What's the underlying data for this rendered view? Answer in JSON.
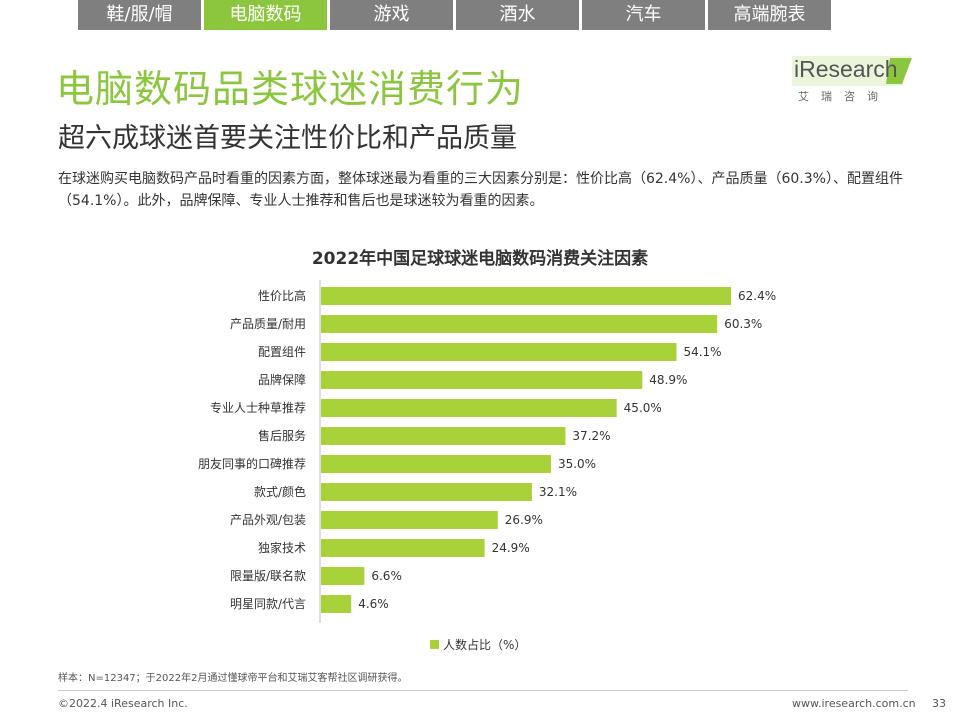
{
  "tabs": [
    {
      "label": "鞋/服/帽",
      "active": false
    },
    {
      "label": "电脑数码",
      "active": true
    },
    {
      "label": "游戏",
      "active": false
    },
    {
      "label": "酒水",
      "active": false
    },
    {
      "label": "汽车",
      "active": false
    },
    {
      "label": "高端腕表",
      "active": false
    }
  ],
  "title": "电脑数码品类球迷消费行为",
  "subtitle": "超六成球迷首要关注性价比和产品质量",
  "summary": "在球迷购买电脑数码产品时看重的因素方面，整体球迷最为看重的三大因素分别是：性价比高（62.4%）、产品质量（60.3%）、配置组件（54.1%）。此外，品牌保障、专业人士推荐和售后也是球迷较为看重的因素。",
  "logo": {
    "main": "iResearch",
    "sub": "艾瑞咨询"
  },
  "colors": {
    "accent": "#8cc63f",
    "bar": "#a9d13a",
    "tab_inactive": "#7f7f7f"
  },
  "chart_data": {
    "type": "bar",
    "orientation": "horizontal",
    "title": "2022年中国足球球迷电脑数码消费关注因素",
    "categories": [
      "性价比高",
      "产品质量/耐用",
      "配置组件",
      "品牌保障",
      "专业人士种草推荐",
      "售后服务",
      "朋友同事的口碑推荐",
      "款式/颜色",
      "产品外观/包装",
      "独家技术",
      "限量版/联名款",
      "明星同款/代言"
    ],
    "series": [
      {
        "name": "人数占比（%）",
        "values": [
          62.4,
          60.3,
          54.1,
          48.9,
          45.0,
          37.2,
          35.0,
          32.1,
          26.9,
          24.9,
          6.6,
          4.6
        ],
        "labels": [
          "62.4%",
          "60.3%",
          "54.1%",
          "48.9%",
          "45.0%",
          "37.2%",
          "35.0%",
          "32.1%",
          "26.9%",
          "24.9%",
          "6.6%",
          "4.6%"
        ]
      }
    ],
    "xlim": [
      0,
      62.4
    ],
    "legend": "bottom"
  },
  "source": "样本：N=12347；于2022年2月通过懂球帝平台和艾瑞艾客帮社区调研获得。",
  "footer": {
    "copyright": "©2022.4 iResearch Inc.",
    "website": "www.iresearch.com.cn",
    "page": "33"
  }
}
